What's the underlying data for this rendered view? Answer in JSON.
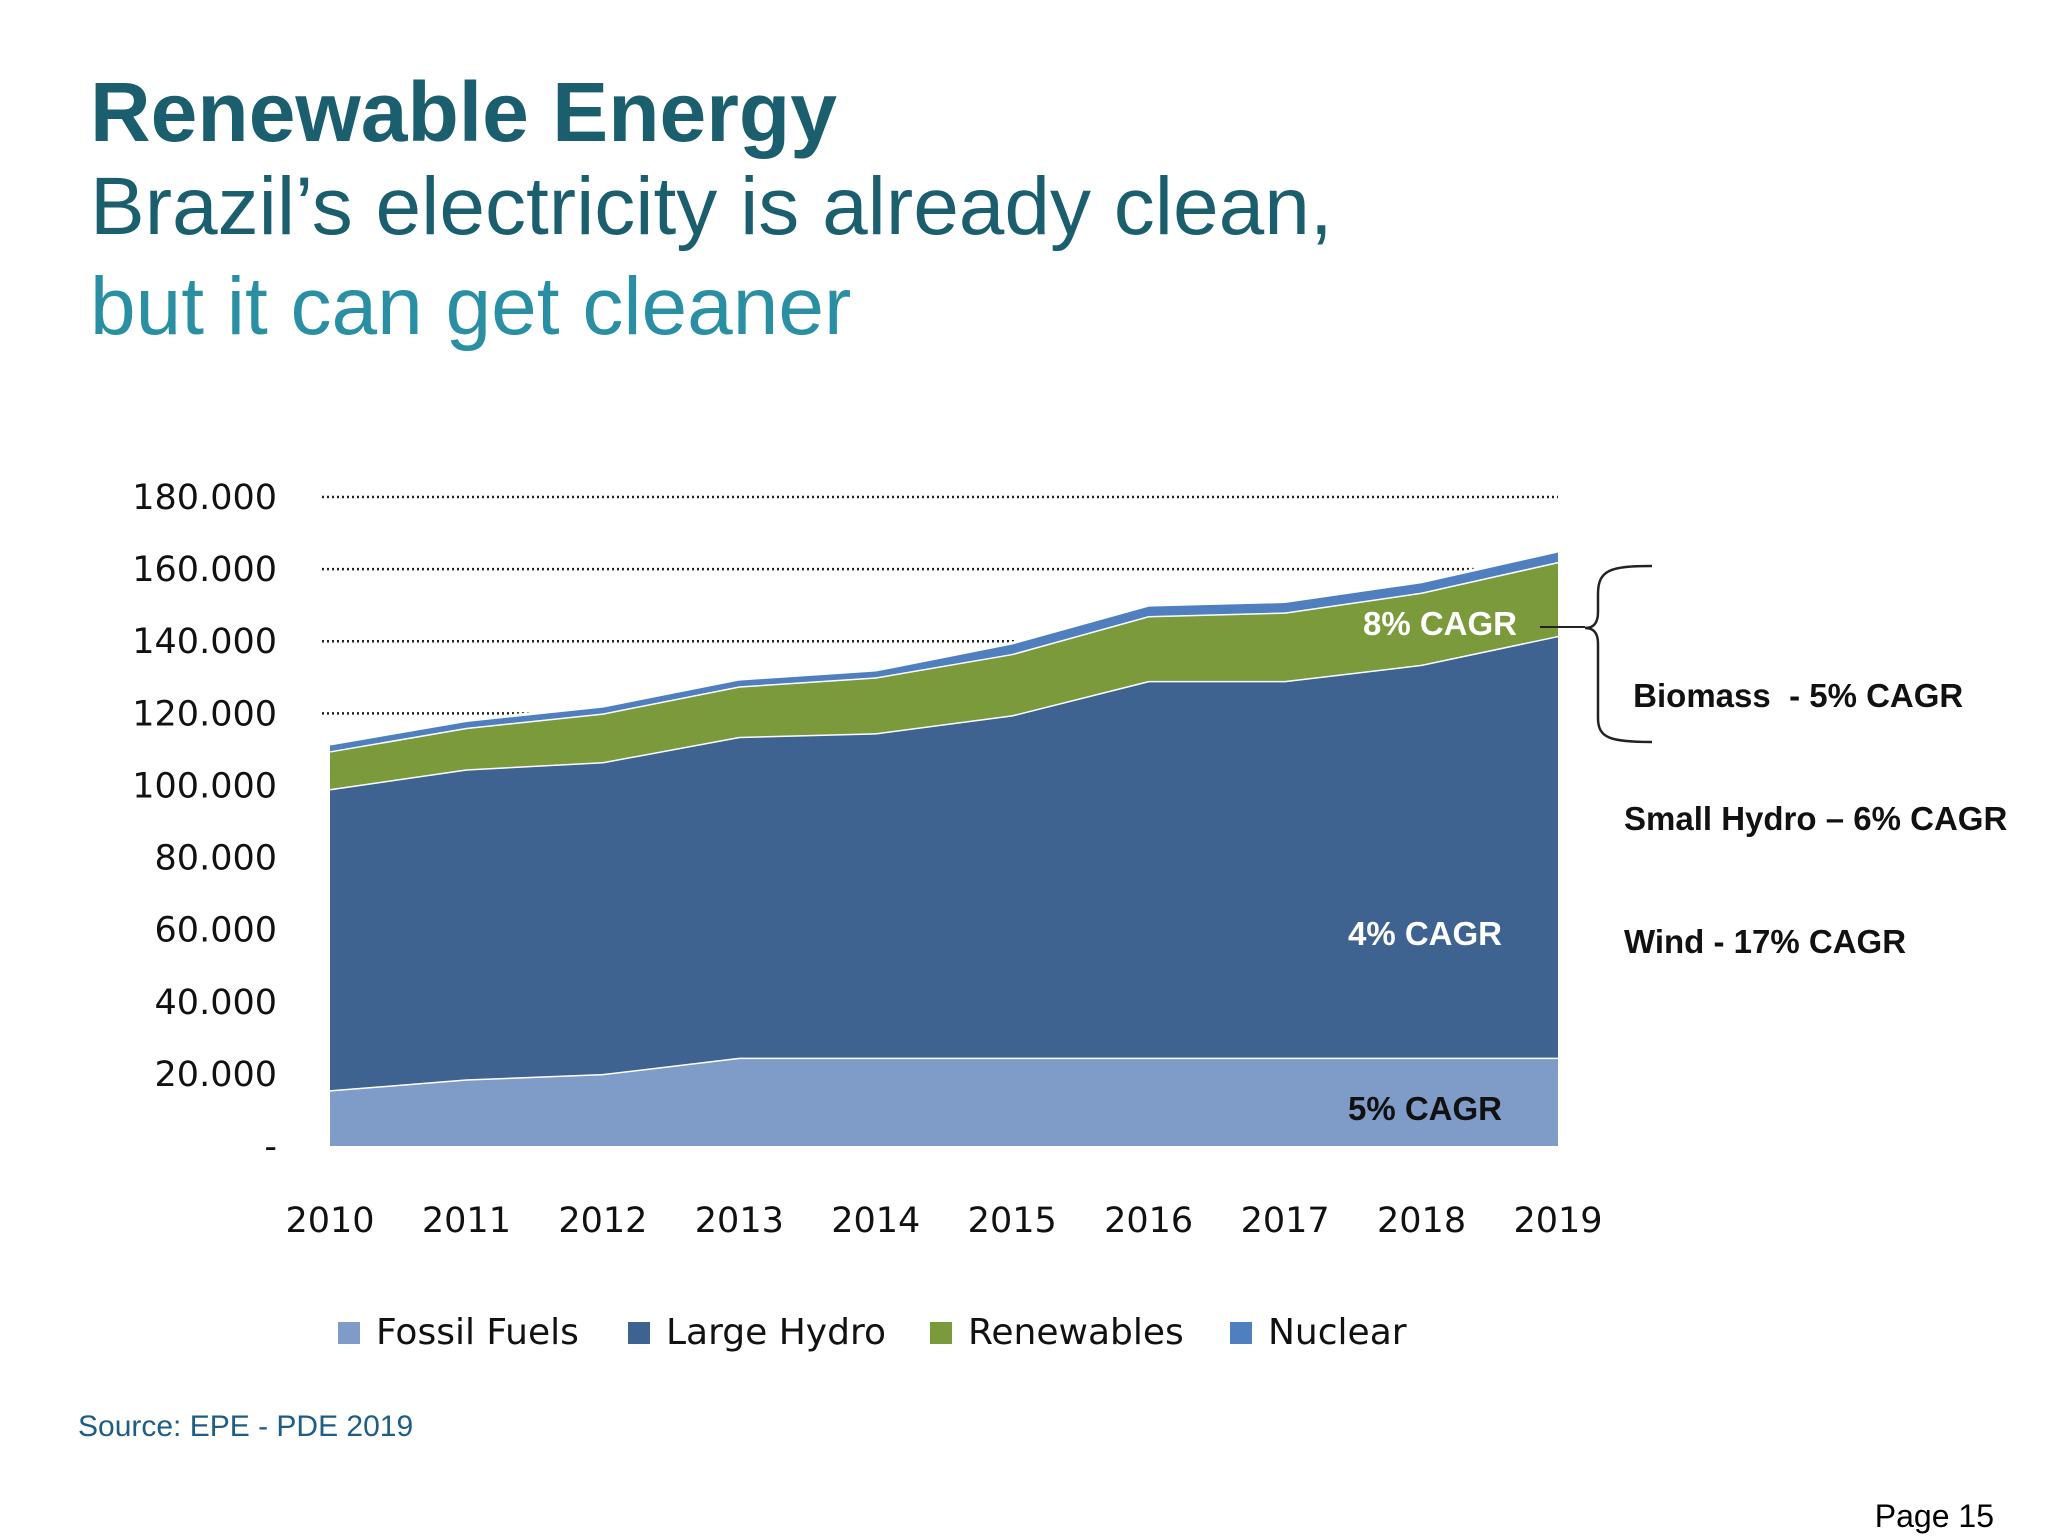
{
  "header": {
    "title": "Renewable Energy",
    "subtitle_line1": "Brazil’s electricity is already clean,",
    "subtitle_line2": "but it can get cleaner"
  },
  "footer": {
    "source": "Source: EPE - PDE 2019",
    "page": "Page 15"
  },
  "callout": {
    "lines": [
      " Biomass  - 5% CAGR",
      "Small Hydro – 6% CAGR",
      "Wind - 17% CAGR"
    ]
  },
  "colors": {
    "title": "#1b5e6e",
    "subtitle_accent": "#2a8fa3",
    "source": "#1f5d86"
  },
  "chart_data": {
    "type": "area",
    "stacked": true,
    "x": [
      "2010",
      "2011",
      "2012",
      "2013",
      "2014",
      "2015",
      "2016",
      "2017",
      "2018",
      "2019"
    ],
    "y_tick_labels": [
      "-",
      "20.000",
      "40.000",
      "60.000",
      "80.000",
      "100.000",
      "120.000",
      "140.000",
      "160.000",
      "180.000"
    ],
    "ylim": [
      0,
      180000
    ],
    "grid": "dotted, above 120.000",
    "legend_position": "bottom",
    "series": [
      {
        "name": "Fossil Fuels",
        "color": "#7f9bc8",
        "values": [
          15500,
          18500,
          20000,
          24500,
          24500,
          24500,
          24500,
          24500,
          24500,
          24500
        ]
      },
      {
        "name": "Large Hydro",
        "color": "#3e6391",
        "values": [
          83500,
          86000,
          86500,
          89000,
          90000,
          95000,
          104500,
          104500,
          109000,
          117000
        ]
      },
      {
        "name": "Renewables",
        "color": "#7a9a3c",
        "values": [
          10500,
          11500,
          13500,
          14000,
          15500,
          17000,
          18000,
          19000,
          20000,
          20500
        ]
      },
      {
        "name": "Nuclear",
        "color": "#4f7fbf",
        "values": [
          2000,
          2000,
          2000,
          2000,
          2000,
          3000,
          3000,
          3000,
          3000,
          3000
        ]
      }
    ],
    "annotations": [
      {
        "text": "8% CAGR",
        "series": "Renewables",
        "color": "#ffffff"
      },
      {
        "text": "4% CAGR",
        "series": "Large Hydro",
        "color": "#ffffff"
      },
      {
        "text": "5% CAGR",
        "series": "Fossil Fuels",
        "color": "#111111"
      }
    ]
  }
}
